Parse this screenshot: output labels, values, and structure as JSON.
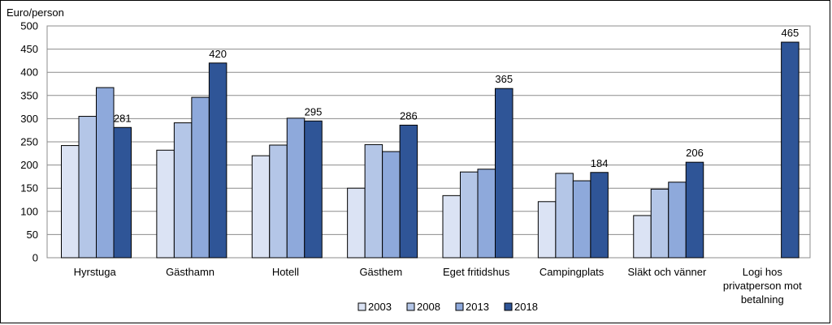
{
  "chart_data": {
    "type": "bar",
    "ylabel": "Euro/person",
    "ylim": [
      0,
      500
    ],
    "yticks": [
      0,
      50,
      100,
      150,
      200,
      250,
      300,
      350,
      400,
      450,
      500
    ],
    "grid": true,
    "legend_position": "bottom",
    "categories": [
      "Hyrstuga",
      "Gästhamn",
      "Hotell",
      "Gästhem",
      "Eget fritidshus",
      "Campingplats",
      "Släkt och vänner",
      "Logi hos privatperson mot betalning"
    ],
    "category_lines": [
      [
        "Hyrstuga"
      ],
      [
        "Gästhamn"
      ],
      [
        "Hotell"
      ],
      [
        "Gästhem"
      ],
      [
        "Eget fritidshus"
      ],
      [
        "Campingplats"
      ],
      [
        "Släkt och vänner"
      ],
      [
        "Logi hos",
        "privatperson mot",
        "betalning"
      ]
    ],
    "series": [
      {
        "name": "2003",
        "color": "#dbe3f4",
        "values": [
          242,
          232,
          220,
          150,
          134,
          121,
          91,
          null
        ]
      },
      {
        "name": "2008",
        "color": "#b4c6e7",
        "values": [
          305,
          291,
          243,
          244,
          185,
          182,
          148,
          null
        ]
      },
      {
        "name": "2013",
        "color": "#8ea9db",
        "values": [
          367,
          346,
          301,
          229,
          191,
          166,
          163,
          null
        ]
      },
      {
        "name": "2018",
        "color": "#2f5597",
        "values": [
          281,
          420,
          295,
          286,
          365,
          184,
          206,
          465
        ]
      }
    ],
    "data_labels_series": "2018"
  }
}
